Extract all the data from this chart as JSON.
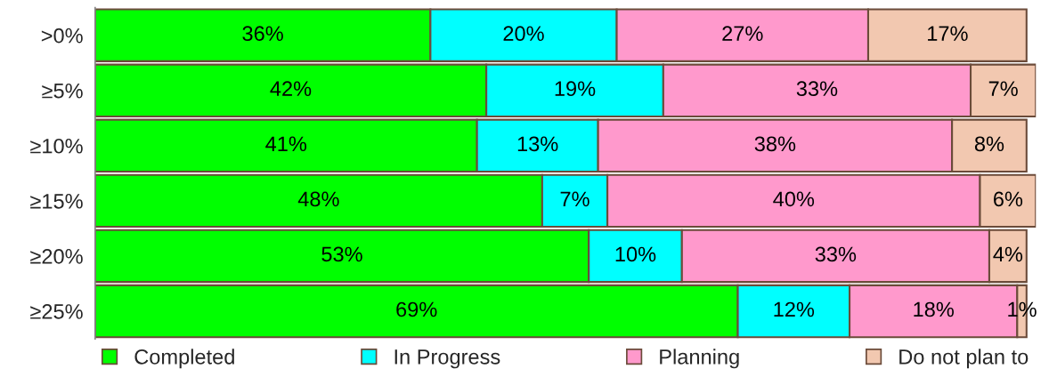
{
  "chart_data": {
    "type": "bar",
    "orientation": "horizontal",
    "stacked": true,
    "legend": "bottom",
    "tick_labels": "y",
    "grid": false,
    "categories": [
      ">0%",
      "≥5%",
      "≥10%",
      "≥15%",
      "≥20%",
      "≥25%"
    ],
    "series": [
      {
        "name": "Completed",
        "color": "#00ff00",
        "values": [
          36,
          42,
          41,
          48,
          53,
          69
        ],
        "value_labels": [
          "36%",
          "42%",
          "41%",
          "48%",
          "53%",
          "69%"
        ]
      },
      {
        "name": "In Progress",
        "color": "#00ffff",
        "values": [
          20,
          19,
          13,
          7,
          10,
          12
        ],
        "value_labels": [
          "20%",
          "19%",
          "13%",
          "7%",
          "10%",
          "12%"
        ]
      },
      {
        "name": "Planning",
        "color": "#ff99cc",
        "values": [
          27,
          33,
          38,
          40,
          33,
          18
        ],
        "value_labels": [
          "27%",
          "33%",
          "38%",
          "40%",
          "33%",
          "18%"
        ]
      },
      {
        "name": "Do not plan to",
        "color": "#f2c8b0",
        "values": [
          17,
          7,
          8,
          6,
          4,
          1
        ],
        "value_labels": [
          "17%",
          "7%",
          "8%",
          "6%",
          "4%",
          "1%"
        ]
      }
    ]
  }
}
